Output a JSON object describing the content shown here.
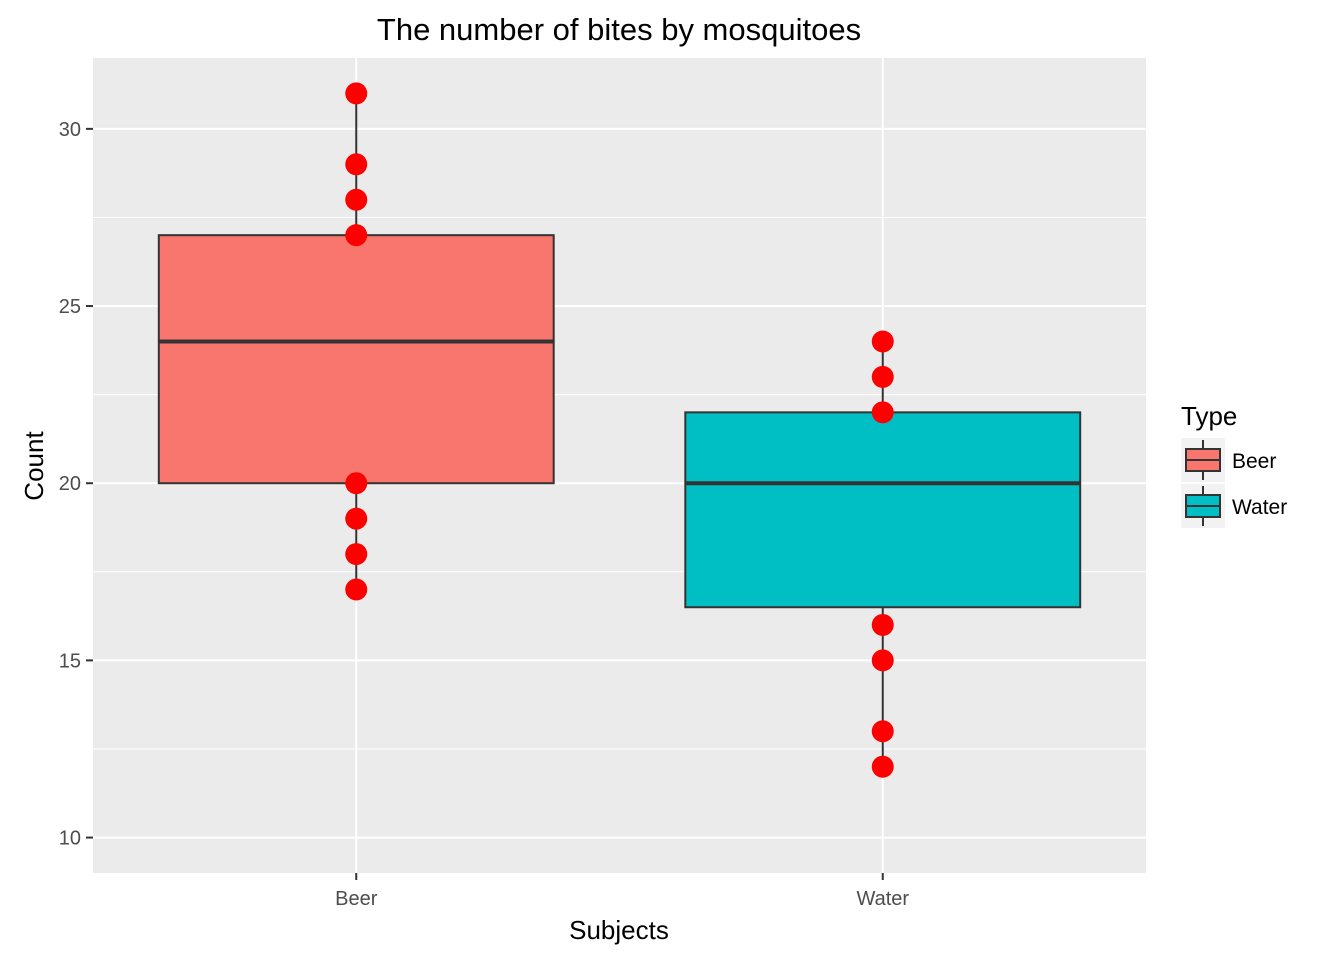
{
  "chart_data": {
    "type": "boxplot",
    "title": "The number of bites by mosquitoes",
    "xlabel": "Subjects",
    "ylabel": "Count",
    "ylim": [
      9,
      32
    ],
    "yticks": [
      10,
      15,
      20,
      25,
      30
    ],
    "categories": [
      "Beer",
      "Water"
    ],
    "legend": {
      "title": "Type",
      "placement": "right",
      "entries": [
        "Beer",
        "Water"
      ]
    },
    "grid": true,
    "boxes": [
      {
        "name": "Beer",
        "min": 17,
        "q1": 20,
        "median": 24,
        "q3": 27,
        "max": 31,
        "fill": "#F8766D"
      },
      {
        "name": "Water",
        "min": 12,
        "q1": 16.5,
        "median": 20,
        "q3": 22,
        "max": 24,
        "fill": "#00BFC4"
      }
    ],
    "points": [
      {
        "category": "Beer",
        "values": [
          31,
          29,
          28,
          27,
          20,
          19,
          18,
          17
        ]
      },
      {
        "category": "Water",
        "values": [
          24,
          23,
          22,
          16,
          15,
          13,
          12
        ]
      }
    ],
    "point_color": "#FF0000",
    "panel_color": "#EBEBEB"
  }
}
